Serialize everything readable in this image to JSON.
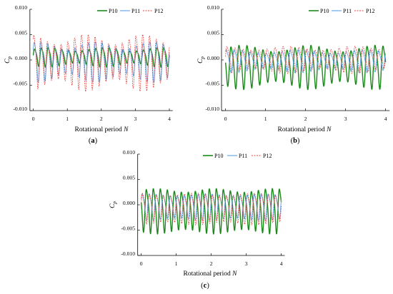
{
  "figure": {
    "panel_labels": {
      "a": {
        "open": "(",
        "letter": "a",
        "close": ")"
      },
      "b": {
        "open": "(",
        "letter": "b",
        "close": ")"
      },
      "c": {
        "open": "(",
        "letter": "c",
        "close": ")"
      }
    }
  },
  "colors": {
    "P10": "#1a8a1a",
    "P11": "#5aa0e6",
    "P12": "#e8413c"
  },
  "chart_data": [
    {
      "id": "a",
      "type": "line",
      "xlabel": "Rotational period",
      "xlabel_var": "N",
      "ylabel": "C",
      "ylabel_sub": "p",
      "xlim": [
        -0.1,
        4.1
      ],
      "ylim": [
        -0.01,
        0.01
      ],
      "xticks": [
        0,
        1,
        2,
        3,
        4
      ],
      "yticks": [
        -0.01,
        -0.005,
        0.0,
        0.005,
        0.01
      ],
      "ytick_labels": [
        "-0.010",
        "-0.005",
        "0.000",
        "0.005",
        "0.010"
      ],
      "legend_position": "top-right",
      "cycles_per_period": 5,
      "series": [
        {
          "name": "P10",
          "mean": 0.0007,
          "amplitude": 0.0018,
          "phase": 0.0,
          "mod": 0.25
        },
        {
          "name": "P11",
          "mean": 0.0,
          "amplitude": 0.0037,
          "phase": 0.05,
          "mod": 0.25
        },
        {
          "name": "P12",
          "mean": 0.0,
          "amplitude": 0.0052,
          "phase": 0.1,
          "mod": 0.25
        }
      ]
    },
    {
      "id": "b",
      "type": "line",
      "xlabel": "Rotational period",
      "xlabel_var": "N",
      "ylabel": "C",
      "ylabel_sub": "p",
      "xlim": [
        -0.1,
        4.1
      ],
      "ylim": [
        -0.01,
        0.01
      ],
      "xticks": [
        0,
        1,
        2,
        3,
        4
      ],
      "yticks": [
        -0.01,
        -0.005,
        0.0,
        0.005,
        0.01
      ],
      "ytick_labels": [
        "-0.010",
        "-0.005",
        "0.000",
        "0.005",
        "0.010"
      ],
      "legend_position": "top-right",
      "cycles_per_period": 5,
      "series": [
        {
          "name": "P10",
          "mean": -0.001,
          "amplitude": 0.0042,
          "phase": 0.5,
          "mod": 0.2
        },
        {
          "name": "P11",
          "mean": 0.0,
          "amplitude": 0.0022,
          "phase": 0.1,
          "mod": 0.2
        },
        {
          "name": "P12",
          "mean": 0.0003,
          "amplitude": 0.0026,
          "phase": 0.0,
          "mod": 0.2
        }
      ]
    },
    {
      "id": "c",
      "type": "line",
      "xlabel": "Rotational period",
      "xlabel_var": "N",
      "ylabel": "C",
      "ylabel_sub": "p",
      "xlim": [
        -0.1,
        4.1
      ],
      "ylim": [
        -0.01,
        0.01
      ],
      "xticks": [
        0,
        1,
        2,
        3,
        4
      ],
      "yticks": [
        -0.01,
        -0.005,
        0.0,
        0.005,
        0.01
      ],
      "ytick_labels": [
        "-0.010",
        "-0.005",
        "0.000",
        "0.005",
        "0.010"
      ],
      "legend_position": "top-right",
      "cycles_per_period": 5,
      "series": [
        {
          "name": "P10",
          "mean": -0.0008,
          "amplitude": 0.0047,
          "phase": 0.45,
          "mod": 0.1
        },
        {
          "name": "P11",
          "mean": -0.0002,
          "amplitude": 0.0028,
          "phase": 0.05,
          "mod": 0.1
        },
        {
          "name": "P12",
          "mean": -0.0005,
          "amplitude": 0.0033,
          "phase": 0.0,
          "mod": 0.1
        }
      ]
    }
  ]
}
